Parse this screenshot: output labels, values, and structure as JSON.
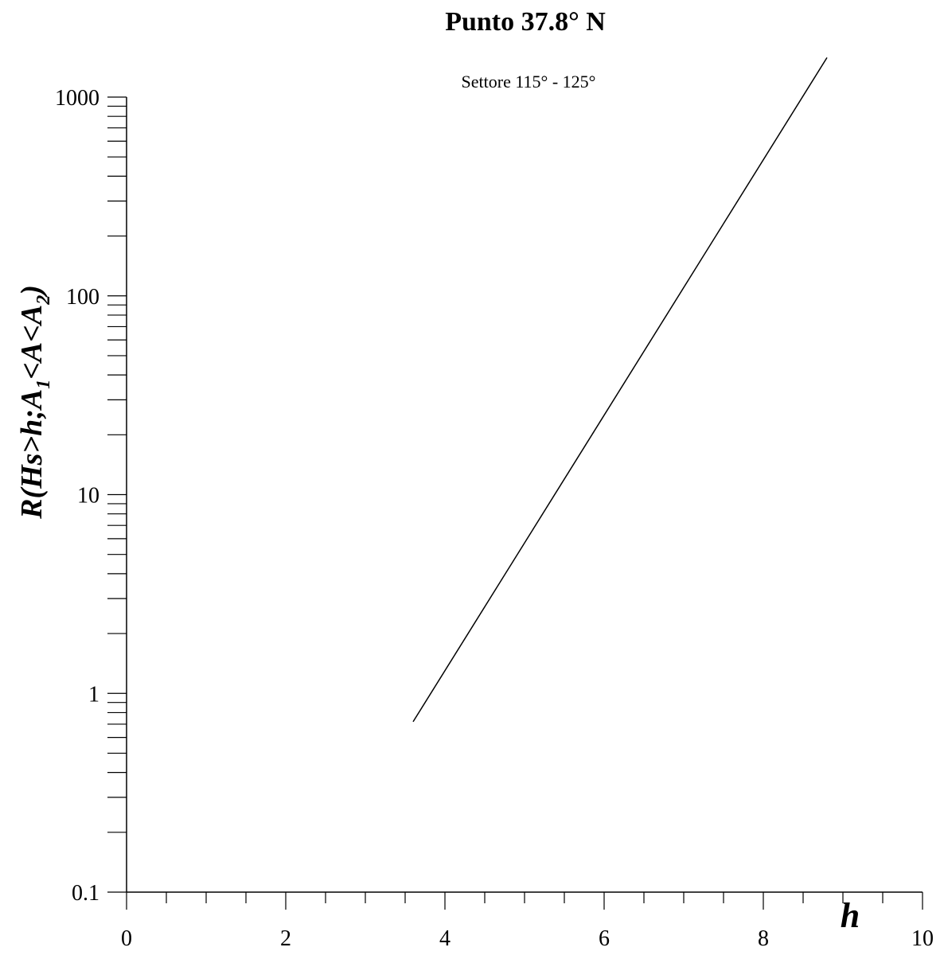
{
  "chart_data": {
    "type": "line",
    "title": "Punto 37.8° N",
    "subtitle": "Settore 115° - 125°",
    "xlabel": "h",
    "ylabel_parts": [
      "R(Hs>h;A",
      "1",
      "<A<A",
      "2",
      ")"
    ],
    "xlim": [
      0,
      10
    ],
    "ylim": [
      0.1,
      1000
    ],
    "yscale": "log",
    "x_ticks": [
      "0",
      "2",
      "4",
      "6",
      "8",
      "10"
    ],
    "y_ticks": [
      "0.1",
      "1",
      "10",
      "100",
      "1000"
    ],
    "series": [
      {
        "x": [
          3.6,
          8.8
        ],
        "y": [
          0.72,
          1580
        ]
      }
    ],
    "grid": false
  }
}
